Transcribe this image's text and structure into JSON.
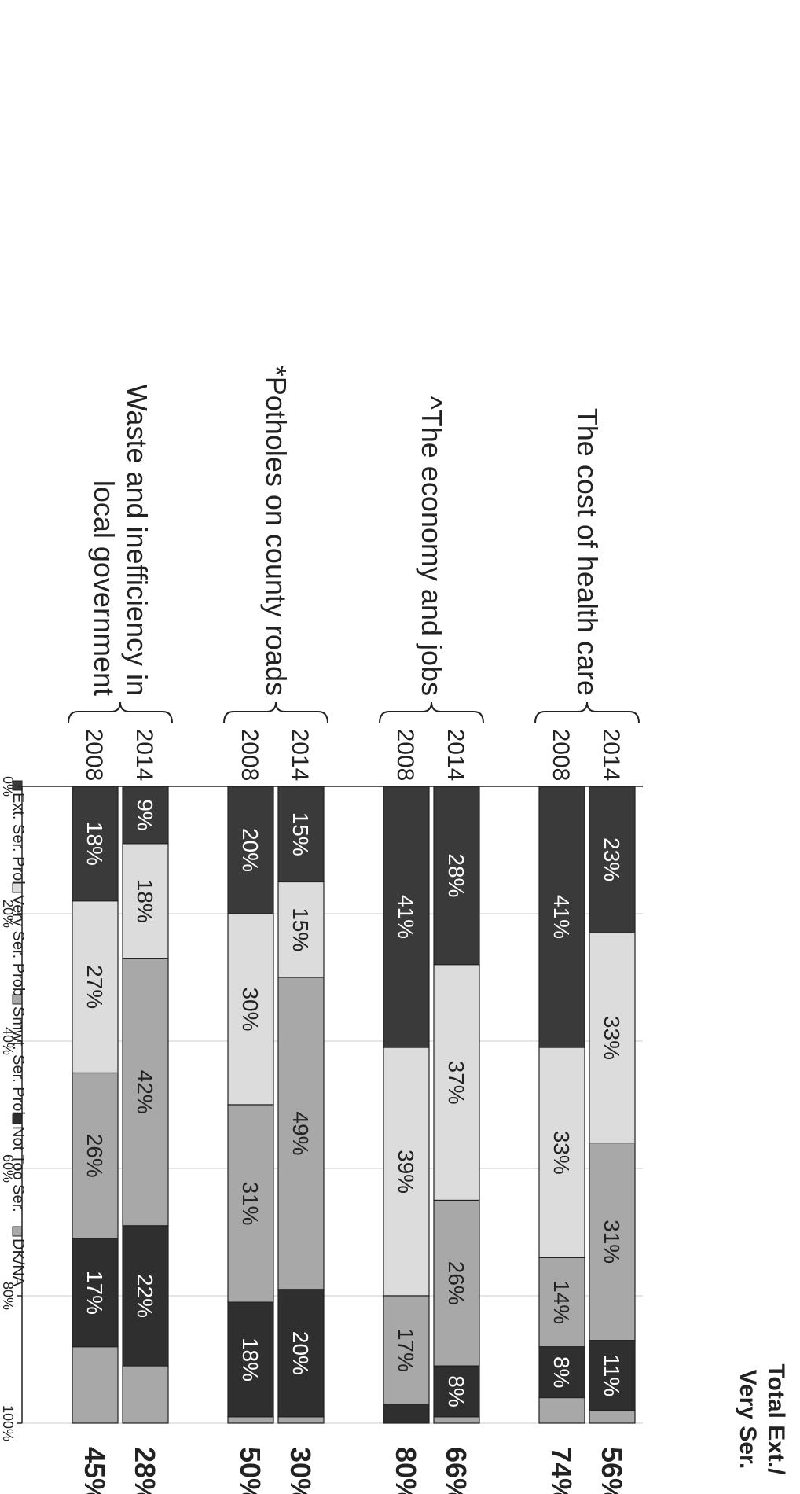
{
  "chart_data": {
    "type": "bar",
    "orientation": "horizontal-stacked",
    "legend_position": "top",
    "grid": true,
    "xlim": [
      0,
      100
    ],
    "x_tick_labels": [
      "0%",
      "20%",
      "40%",
      "60%",
      "80%",
      "100%"
    ],
    "x_tick_values": [
      0,
      20,
      40,
      60,
      80,
      100
    ],
    "total_header": [
      "Total Ext./",
      "Very Ser."
    ],
    "series": [
      {
        "name": "Ext. Ser. Prob.",
        "color": "#3a3a3a"
      },
      {
        "name": "Very Ser. Prob.",
        "color": "#dcdcdc"
      },
      {
        "name": "Smwt. Ser. Prob.",
        "color": "#a8a8a8"
      },
      {
        "name": "Not Too Ser.",
        "color": "#2f2f2f"
      },
      {
        "name": "DK/NA",
        "color": "#a8a8a8"
      }
    ],
    "groups": [
      {
        "label": [
          "The cost of health care"
        ],
        "bars": [
          {
            "year": "2014",
            "values": [
              23,
              33,
              31,
              11,
              2
            ],
            "labels": [
              "23%",
              "33%",
              "31%",
              "11%",
              ""
            ],
            "total": "56%"
          },
          {
            "year": "2008",
            "values": [
              41,
              33,
              14,
              8,
              4
            ],
            "labels": [
              "41%",
              "33%",
              "14%",
              "8%",
              ""
            ],
            "total": "74%"
          }
        ]
      },
      {
        "label": [
          "^The economy and jobs"
        ],
        "bars": [
          {
            "year": "2014",
            "values": [
              28,
              37,
              26,
              8,
              1
            ],
            "labels": [
              "28%",
              "37%",
              "26%",
              "8%",
              ""
            ],
            "total": "66%"
          },
          {
            "year": "2008",
            "values": [
              41,
              39,
              17,
              3,
              0
            ],
            "labels": [
              "41%",
              "39%",
              "17%",
              "",
              ""
            ],
            "total": "80%"
          }
        ]
      },
      {
        "label": [
          "*Potholes on county roads"
        ],
        "bars": [
          {
            "year": "2014",
            "values": [
              15,
              15,
              49,
              20,
              1
            ],
            "labels": [
              "15%",
              "15%",
              "49%",
              "20%",
              ""
            ],
            "total": "30%"
          },
          {
            "year": "2008",
            "values": [
              20,
              30,
              31,
              18,
              1
            ],
            "labels": [
              "20%",
              "30%",
              "31%",
              "18%",
              ""
            ],
            "total": "50%"
          }
        ]
      },
      {
        "label": [
          "Waste and inefficiency in",
          "local government"
        ],
        "bars": [
          {
            "year": "2014",
            "values": [
              9,
              18,
              42,
              22,
              9
            ],
            "labels": [
              "9%",
              "18%",
              "42%",
              "22%",
              ""
            ],
            "total": "28%"
          },
          {
            "year": "2008",
            "values": [
              18,
              27,
              26,
              17,
              12
            ],
            "labels": [
              "18%",
              "27%",
              "26%",
              "17%",
              ""
            ],
            "total": "45%"
          }
        ]
      }
    ]
  }
}
